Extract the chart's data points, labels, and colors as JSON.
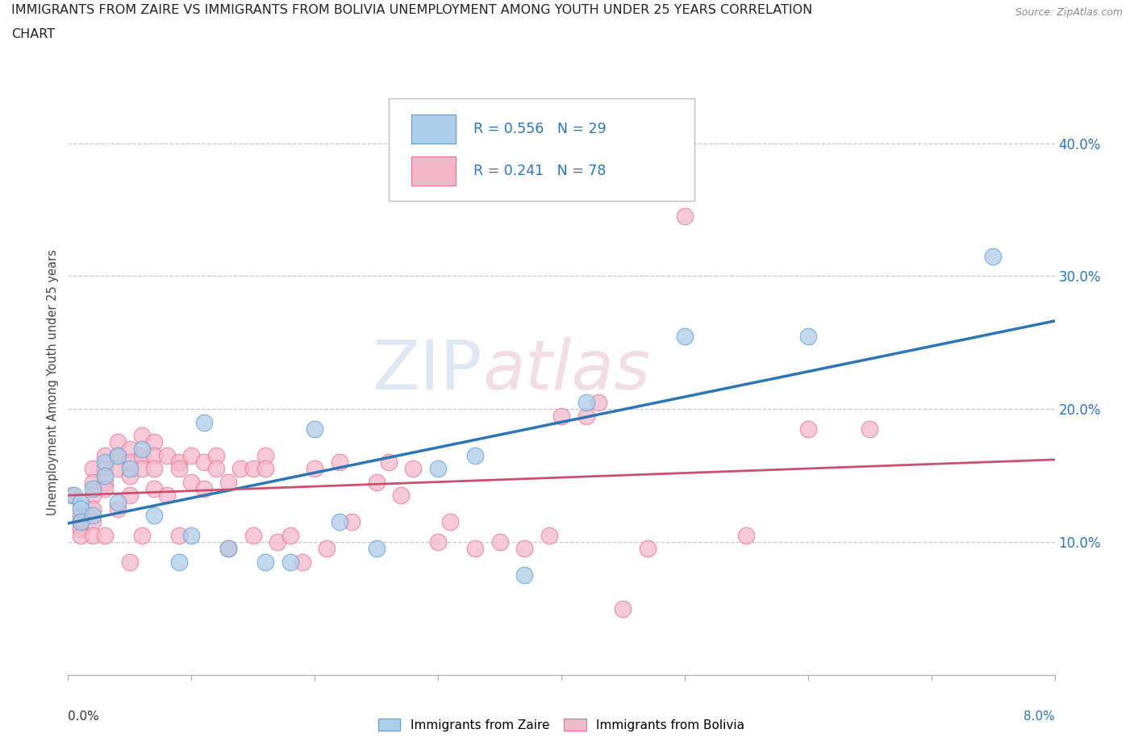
{
  "title_line1": "IMMIGRANTS FROM ZAIRE VS IMMIGRANTS FROM BOLIVIA UNEMPLOYMENT AMONG YOUTH UNDER 25 YEARS CORRELATION",
  "title_line2": "CHART",
  "source": "Source: ZipAtlas.com",
  "ylabel": "Unemployment Among Youth under 25 years",
  "ytick_labels": [
    "10.0%",
    "20.0%",
    "30.0%",
    "40.0%"
  ],
  "ytick_values": [
    0.1,
    0.2,
    0.3,
    0.4
  ],
  "xlim": [
    0.0,
    0.08
  ],
  "ylim": [
    0.0,
    0.44
  ],
  "zaire_scatter_color": "#aecde8",
  "zaire_edge_color": "#5b9bd5",
  "bolivia_scatter_color": "#f4b8cb",
  "bolivia_edge_color": "#e8728e",
  "zaire_line_color": "#2e75b6",
  "bolivia_line_color": "#c9506e",
  "R_zaire": 0.556,
  "N_zaire": 29,
  "R_bolivia": 0.241,
  "N_bolivia": 78,
  "legend_text_color": "#2e75b6",
  "watermark": "ZIPatlas",
  "zaire_x": [
    0.0005,
    0.001,
    0.001,
    0.001,
    0.002,
    0.002,
    0.003,
    0.003,
    0.004,
    0.004,
    0.005,
    0.006,
    0.007,
    0.009,
    0.01,
    0.011,
    0.013,
    0.016,
    0.018,
    0.02,
    0.022,
    0.025,
    0.03,
    0.033,
    0.037,
    0.042,
    0.05,
    0.06,
    0.075
  ],
  "zaire_y": [
    0.135,
    0.13,
    0.125,
    0.115,
    0.14,
    0.12,
    0.16,
    0.15,
    0.165,
    0.13,
    0.155,
    0.17,
    0.12,
    0.085,
    0.105,
    0.19,
    0.095,
    0.085,
    0.085,
    0.185,
    0.115,
    0.095,
    0.155,
    0.165,
    0.075,
    0.205,
    0.255,
    0.255,
    0.315
  ],
  "bolivia_x": [
    0.0003,
    0.001,
    0.001,
    0.001,
    0.001,
    0.001,
    0.002,
    0.002,
    0.002,
    0.002,
    0.002,
    0.002,
    0.003,
    0.003,
    0.003,
    0.003,
    0.003,
    0.004,
    0.004,
    0.004,
    0.004,
    0.005,
    0.005,
    0.005,
    0.005,
    0.005,
    0.006,
    0.006,
    0.006,
    0.006,
    0.007,
    0.007,
    0.007,
    0.007,
    0.008,
    0.008,
    0.009,
    0.009,
    0.009,
    0.01,
    0.01,
    0.011,
    0.011,
    0.012,
    0.012,
    0.013,
    0.013,
    0.014,
    0.015,
    0.015,
    0.016,
    0.016,
    0.017,
    0.018,
    0.019,
    0.02,
    0.021,
    0.022,
    0.023,
    0.025,
    0.026,
    0.027,
    0.028,
    0.03,
    0.031,
    0.033,
    0.035,
    0.037,
    0.039,
    0.04,
    0.042,
    0.043,
    0.045,
    0.047,
    0.05,
    0.055,
    0.06,
    0.065
  ],
  "bolivia_y": [
    0.135,
    0.12,
    0.115,
    0.115,
    0.11,
    0.105,
    0.155,
    0.145,
    0.135,
    0.125,
    0.115,
    0.105,
    0.165,
    0.155,
    0.145,
    0.14,
    0.105,
    0.175,
    0.165,
    0.155,
    0.125,
    0.17,
    0.16,
    0.15,
    0.135,
    0.085,
    0.18,
    0.165,
    0.155,
    0.105,
    0.175,
    0.165,
    0.155,
    0.14,
    0.165,
    0.135,
    0.16,
    0.155,
    0.105,
    0.165,
    0.145,
    0.16,
    0.14,
    0.165,
    0.155,
    0.145,
    0.095,
    0.155,
    0.155,
    0.105,
    0.165,
    0.155,
    0.1,
    0.105,
    0.085,
    0.155,
    0.095,
    0.16,
    0.115,
    0.145,
    0.16,
    0.135,
    0.155,
    0.1,
    0.115,
    0.095,
    0.1,
    0.095,
    0.105,
    0.195,
    0.195,
    0.205,
    0.05,
    0.095,
    0.345,
    0.105,
    0.185,
    0.185
  ]
}
